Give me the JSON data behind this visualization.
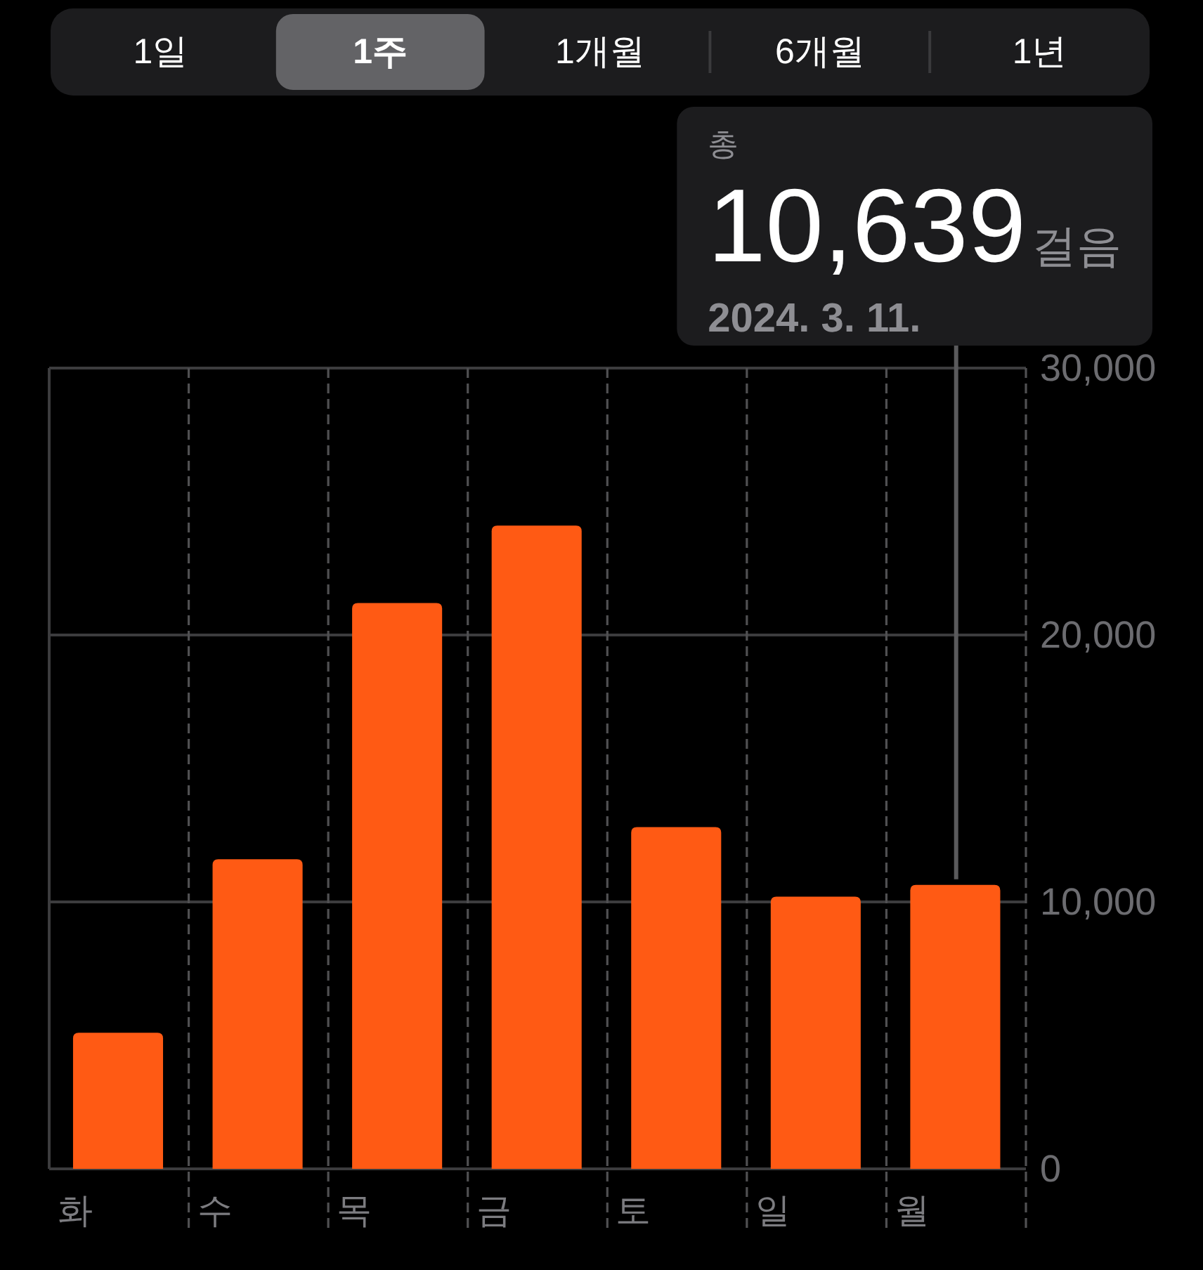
{
  "chart_data": {
    "type": "bar",
    "categories": [
      "화",
      "수",
      "목",
      "금",
      "토",
      "일",
      "월"
    ],
    "values": [
      5100,
      11600,
      21200,
      24100,
      12800,
      10200,
      10639
    ],
    "color": "#ff5a14",
    "ylim": [
      0,
      30000
    ],
    "yticks": [
      0,
      {
        "value": 10000,
        "label": "10,000"
      },
      {
        "value": 20000,
        "label": "20,000"
      },
      {
        "value": 30000,
        "label": "30,000"
      }
    ],
    "grid": true,
    "ref_lines": [
      {
        "axis": "x",
        "value": "월",
        "color": "#5a5a5c"
      }
    ],
    "annotations": [
      "1일",
      "1주",
      "1개월",
      "6개월",
      "1년",
      "총",
      "10,639",
      "걸음",
      "2024. 3. 11."
    ]
  }
}
